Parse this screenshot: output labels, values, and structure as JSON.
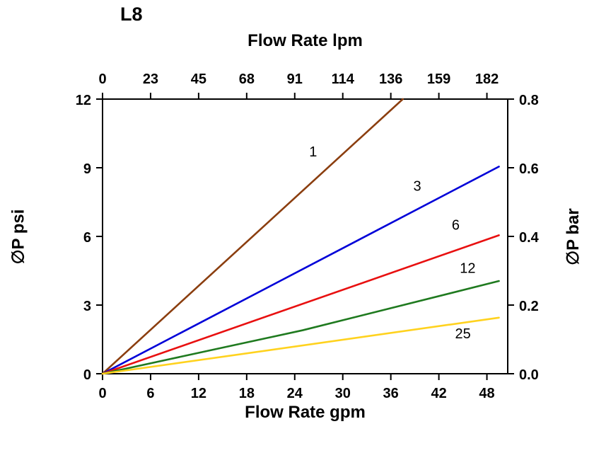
{
  "chart_data": {
    "type": "line",
    "title": "L8",
    "x_axis_top": {
      "label": "Flow Rate lpm",
      "ticks": [
        "0",
        "23",
        "45",
        "68",
        "91",
        "114",
        "136",
        "159",
        "182"
      ]
    },
    "x_axis_bottom": {
      "label": "Flow Rate gpm",
      "ticks": [
        0,
        6,
        12,
        18,
        24,
        30,
        36,
        42,
        48
      ],
      "range": [
        0,
        50.6
      ]
    },
    "y_axis_left": {
      "label": "∅P psi",
      "ticks": [
        0,
        3,
        6,
        9,
        12
      ],
      "range": [
        0,
        12
      ]
    },
    "y_axis_right": {
      "label": "∅P bar",
      "ticks": [
        "0.0",
        "0.2",
        "0.4",
        "0.6",
        "0.8"
      ],
      "range": [
        0,
        0.8
      ]
    },
    "grid": false,
    "series": [
      {
        "name": "1",
        "color": "#8B3E0F",
        "points": [
          [
            0,
            0
          ],
          [
            37.5,
            12
          ]
        ],
        "label_pos": [
          26.3,
          9.5
        ]
      },
      {
        "name": "3",
        "color": "#0000D8",
        "points": [
          [
            0,
            0
          ],
          [
            49.5,
            9.05
          ]
        ],
        "label_pos": [
          39.3,
          8.0
        ]
      },
      {
        "name": "6",
        "color": "#E81010",
        "points": [
          [
            0,
            0
          ],
          [
            49.5,
            6.05
          ]
        ],
        "label_pos": [
          44.1,
          6.3
        ]
      },
      {
        "name": "12",
        "color": "#1F7A1F",
        "points": [
          [
            0,
            0
          ],
          [
            25,
            1.9
          ],
          [
            49.5,
            4.05
          ]
        ],
        "label_pos": [
          45.6,
          4.4
        ]
      },
      {
        "name": "25",
        "color": "#FFD21E",
        "points": [
          [
            0,
            0
          ],
          [
            49.5,
            2.45
          ]
        ],
        "label_pos": [
          45.0,
          1.55
        ]
      }
    ]
  }
}
